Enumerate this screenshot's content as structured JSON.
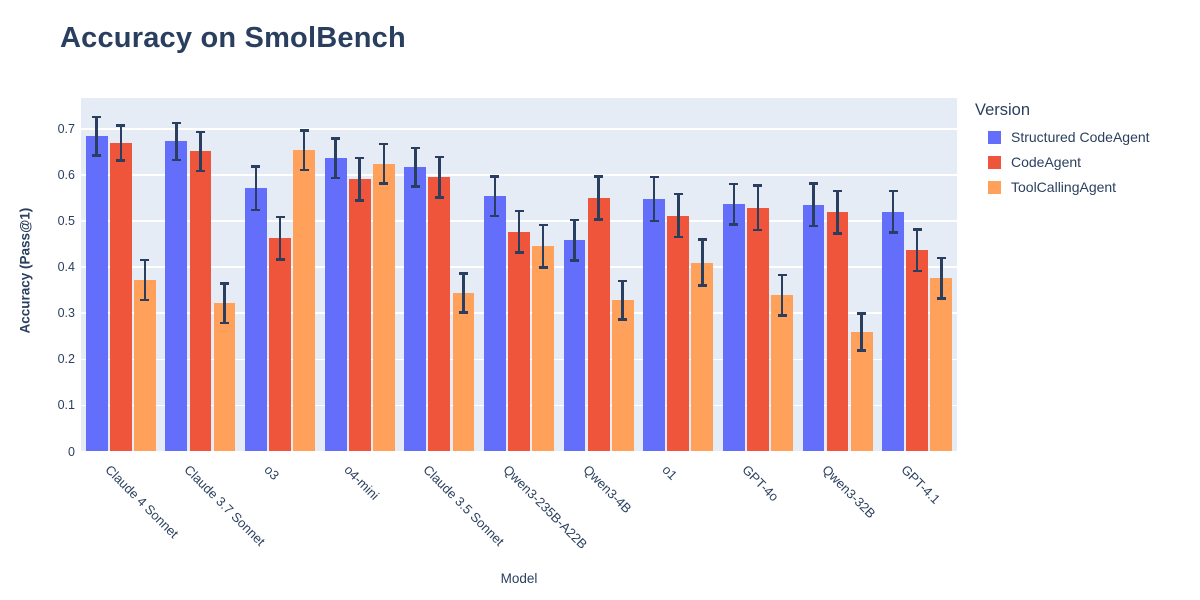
{
  "title": "Accuracy on SmolBench",
  "chart_data": {
    "type": "bar",
    "title": "Accuracy on SmolBench",
    "xlabel": "Model",
    "ylabel": "Accuracy (Pass@1)",
    "ylim": [
      0,
      0.767
    ],
    "yticks": [
      0,
      0.1,
      0.2,
      0.3,
      0.4,
      0.5,
      0.6,
      0.7
    ],
    "grid": true,
    "plot_bgcolor": "#E5ECF6",
    "gridline_color": "#ffffff",
    "text_color": "#2a3f5f",
    "error_bar_color": "#2a3f5f",
    "legend_title": "Version",
    "legend_position": "top-right-outside",
    "x_tick_angle": 45,
    "categories": [
      "Claude 4 Sonnet",
      "Claude 3.7 Sonnet",
      "o3",
      "o4-mini",
      "Claude 3.5 Sonnet",
      "Qwen3-235B-A22B",
      "Qwen3-4B",
      "o1",
      "GPT-4o",
      "Qwen3-32B",
      "GPT-4.1"
    ],
    "series": [
      {
        "name": "Structured CodeAgent",
        "color": "#636EFA",
        "values": [
          0.684,
          0.673,
          0.571,
          0.636,
          0.617,
          0.554,
          0.458,
          0.548,
          0.536,
          0.535,
          0.52
        ],
        "errors": [
          0.042,
          0.04,
          0.047,
          0.043,
          0.042,
          0.043,
          0.044,
          0.048,
          0.044,
          0.046,
          0.045
        ]
      },
      {
        "name": "CodeAgent",
        "color": "#EF553B",
        "values": [
          0.669,
          0.651,
          0.463,
          0.591,
          0.595,
          0.477,
          0.55,
          0.512,
          0.529,
          0.519,
          0.437
        ],
        "errors": [
          0.038,
          0.042,
          0.046,
          0.046,
          0.044,
          0.045,
          0.047,
          0.047,
          0.048,
          0.046,
          0.045
        ]
      },
      {
        "name": "ToolCallingAgent",
        "color": "#FFA15A",
        "values": [
          0.372,
          0.322,
          0.654,
          0.624,
          0.344,
          0.445,
          0.328,
          0.41,
          0.339,
          0.259,
          0.376
        ],
        "errors": [
          0.043,
          0.043,
          0.043,
          0.043,
          0.042,
          0.046,
          0.042,
          0.05,
          0.044,
          0.04,
          0.044
        ]
      }
    ]
  }
}
